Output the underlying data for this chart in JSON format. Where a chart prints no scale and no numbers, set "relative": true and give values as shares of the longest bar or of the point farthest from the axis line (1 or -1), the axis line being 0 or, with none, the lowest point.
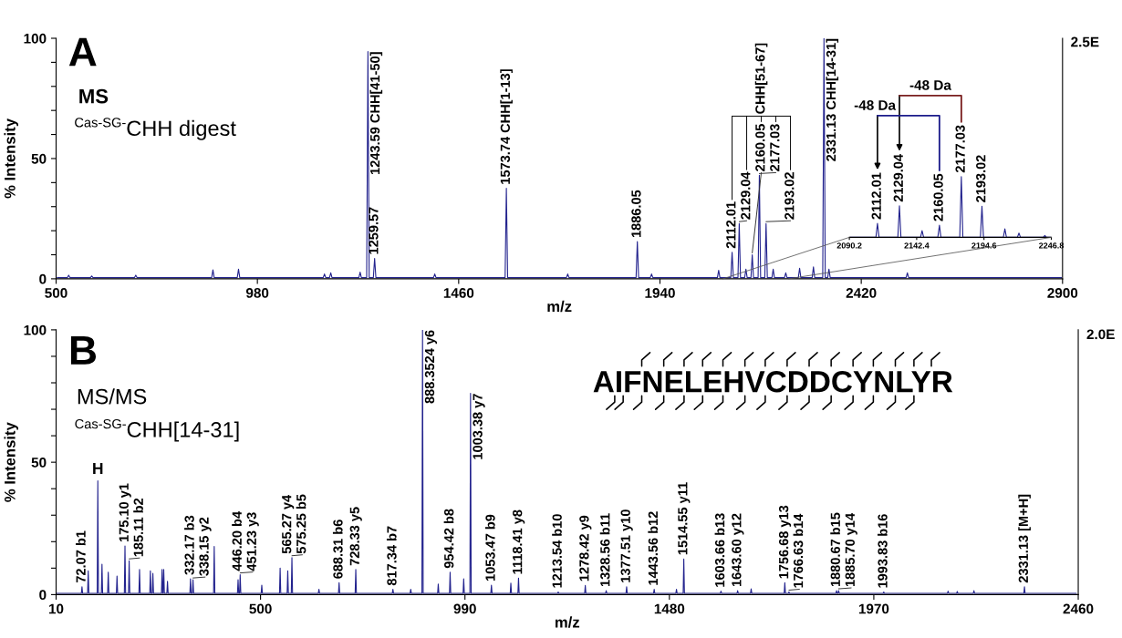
{
  "chart_data": [
    {
      "type": "line",
      "xlabel": "m/z",
      "ylabel": "% Intensity",
      "xlim": [
        500,
        2900
      ],
      "xticks": [
        500,
        980,
        1460,
        1940,
        2420,
        2900
      ],
      "ylim": [
        0,
        100
      ],
      "yticks": [
        0,
        {
          "value": 10,
          "label": null
        },
        {
          "value": 20,
          "label": null
        },
        {
          "value": 30,
          "label": null
        },
        {
          "value": 40,
          "label": null
        },
        50,
        {
          "value": 60,
          "label": null
        },
        {
          "value": 70,
          "label": null
        },
        {
          "value": 80,
          "label": null
        },
        {
          "value": 90,
          "label": null
        },
        100
      ],
      "series": [
        {
          "color": "#23238e",
          "x": [
            503,
            527,
            530,
            533,
            582,
            585,
            588,
            687,
            690,
            693,
            871,
            874,
            877,
            932,
            935,
            938,
            1137,
            1140,
            1143,
            1152,
            1155,
            1158,
            1222,
            1225,
            1228,
            1240.59,
            1243.59,
            1246.59,
            1256.57,
            1259.57,
            1262.57,
            1400,
            1403,
            1406,
            1570.74,
            1573.74,
            1576.74,
            1717,
            1720,
            1723,
            1883.05,
            1886.05,
            1889.05,
            1917,
            1920,
            1923,
            2077,
            2080,
            2083,
            2109.01,
            2112.01,
            2115.01,
            2126.04,
            2129.04,
            2132.04,
            2142,
            2145,
            2148,
            2157.05,
            2160.05,
            2163.05,
            2174.03,
            2177.03,
            2180.03,
            2190.02,
            2193.02,
            2196.02,
            2207,
            2210,
            2213,
            2237,
            2240,
            2243,
            2270,
            2273,
            2276,
            2303,
            2306,
            2309,
            2328.13,
            2331.13,
            2334.13,
            2340,
            2343,
            2346,
            2527,
            2530,
            2533,
            2897
          ],
          "values": [
            0.5,
            0.5,
            1.5,
            0.5,
            0.5,
            1.2,
            0.5,
            0.5,
            1.5,
            0.5,
            0.5,
            3.7,
            0.5,
            0.5,
            4.0,
            0.5,
            0.5,
            2,
            0.5,
            0.5,
            2.5,
            0.5,
            0.5,
            2.8,
            0.5,
            0.5,
            94.5,
            0.5,
            0.5,
            8.5,
            0.5,
            0.5,
            2,
            0.5,
            0.5,
            37.6,
            0.5,
            0.5,
            2,
            0.5,
            0.5,
            15.5,
            0.5,
            0.5,
            2,
            0.5,
            0.5,
            3.5,
            0.5,
            0.5,
            11,
            0.5,
            0.5,
            23,
            0.5,
            0.5,
            4,
            0.5,
            0.5,
            10,
            0.5,
            0.5,
            43,
            0.5,
            0.5,
            23,
            0.5,
            0.5,
            4,
            0.5,
            0.5,
            2.5,
            0.5,
            0.5,
            4.4,
            0.5,
            0.5,
            5,
            0.5,
            0.5,
            100,
            0.5,
            0.5,
            4,
            0.5,
            0.5,
            2.5,
            0.5,
            0.5
          ]
        }
      ],
      "annotations": [
        "A",
        "MS",
        "$^{Cas-SG-}$CHH digest",
        "2.5E",
        "CHH[51-67]",
        {
          "text": "1243.59 CHH[41-50]",
          "x": 1243.59,
          "y": 94.5
        },
        {
          "text": "1259.57",
          "x": 1259.57,
          "y": 8.5
        },
        {
          "text": "1573.74 CHH[1-13]",
          "x": 1573.74,
          "y": 37.6
        },
        {
          "text": "1886.05",
          "x": 1886.05,
          "y": 15.5
        },
        {
          "text": "2112.01",
          "x": 2112.01,
          "y": 11
        },
        {
          "text": "2129.04",
          "x": 2129.04,
          "y": 23
        },
        {
          "text": "2160.05",
          "x": 2160.05,
          "y": 10
        },
        {
          "text": "2177.03",
          "x": 2177.03,
          "y": 43
        },
        {
          "text": "2193.02",
          "x": 2193.02,
          "y": 23
        },
        {
          "text": "2331.13 CHH[14-31]",
          "x": 2331.13,
          "y": 100
        }
      ]
    },
    {
      "type": "line",
      "relative": true,
      "tick_labels": "x",
      "xlim": [
        2090.2,
        2246.8
      ],
      "xticks": [
        2090.2,
        2142.4,
        2194.6,
        2246.8
      ],
      "series": [
        {
          "color": "#23238e",
          "x": [
            2091,
            2110.8,
            2112.01,
            2113.2,
            2127.8,
            2129.04,
            2130.2,
            2145.4,
            2146.6,
            2147.8,
            2158.8,
            2160.05,
            2161.2,
            2175.8,
            2177.03,
            2178.2,
            2191.8,
            2193.02,
            2194.2,
            2209.6,
            2210.8,
            2212,
            2220.5,
            2221.7,
            2222.9,
            2240.6,
            2241.8,
            2243,
            2246
          ],
          "values": [
            0,
            0,
            0.23,
            0,
            0,
            0.52,
            0,
            0,
            0.11,
            0,
            0,
            0.2,
            0,
            0,
            1,
            0,
            0,
            0.51,
            0,
            0,
            0.14,
            0,
            0,
            0.07,
            0,
            0,
            0.03,
            0,
            0
          ]
        }
      ],
      "annotations": [
        "-48 Da",
        "-48 Da",
        {
          "text": "2112.01",
          "x": 2112.01,
          "y": 0.23
        },
        {
          "text": "2129.04",
          "x": 2129.04,
          "y": 0.52
        },
        {
          "text": "2160.05",
          "x": 2160.05,
          "y": 0.2
        },
        {
          "text": "2177.03",
          "x": 2177.03,
          "y": 1
        },
        {
          "text": "2193.02",
          "x": 2193.02,
          "y": 0.51
        }
      ]
    },
    {
      "type": "line",
      "xlabel": "m/z",
      "ylabel": "% Intensity",
      "xlim": [
        10,
        2460
      ],
      "xticks": [
        10,
        500,
        990,
        1480,
        1970,
        2460
      ],
      "ylim": [
        0,
        100
      ],
      "yticks": [
        0,
        {
          "value": 10,
          "label": null
        },
        {
          "value": 20,
          "label": null
        },
        {
          "value": 30,
          "label": null
        },
        {
          "value": 40,
          "label": null
        },
        50,
        {
          "value": 60,
          "label": null
        },
        {
          "value": 70,
          "label": null
        },
        {
          "value": 80,
          "label": null
        },
        {
          "value": 90,
          "label": null
        },
        100
      ],
      "series": [
        {
          "color": "#23238e",
          "x": [
            12,
            70.57,
            72.07,
            73.57,
            85.5,
            87,
            88.5,
            108.5,
            110,
            111.5,
            118.5,
            120,
            121.5,
            133.5,
            135,
            136.5,
            154.5,
            156,
            157.5,
            173.6,
            175.1,
            176.6,
            183.61,
            185.11,
            186.61,
            208.5,
            210,
            211.5,
            234.5,
            236,
            237.5,
            240.5,
            242,
            243.5,
            262.5,
            264,
            265.5,
            266.5,
            268,
            269.5,
            275.5,
            277,
            278.5,
            330.67,
            332.17,
            333.67,
            336.65,
            338.15,
            339.65,
            387.5,
            389,
            390.5,
            444.7,
            446.2,
            447.7,
            449.73,
            451.23,
            452.73,
            501.5,
            503,
            504.5,
            545.5,
            547,
            548.5,
            563.77,
            565.27,
            566.77,
            573.75,
            575.25,
            576.75,
            638.5,
            640,
            641.5,
            686.81,
            688.31,
            689.81,
            726.83,
            728.33,
            729.83,
            815.84,
            817.34,
            818.84,
            858.5,
            860,
            861.5,
            886.85,
            888.3524,
            889.85,
            924.5,
            926,
            927.5,
            952.92,
            954.42,
            955.92,
            985.5,
            987,
            988.5,
            1001.88,
            1003.38,
            1004.88,
            1051.97,
            1053.47,
            1054.97,
            1098.5,
            1100,
            1101.5,
            1116.91,
            1118.41,
            1119.91,
            1212.04,
            1213.54,
            1215.04,
            1276.92,
            1278.42,
            1279.92,
            1327.06,
            1328.56,
            1330.06,
            1376.01,
            1377.51,
            1379.01,
            1442.06,
            1443.56,
            1445.06,
            1495.5,
            1497,
            1498.5,
            1513.05,
            1514.55,
            1516.05,
            1602.16,
            1603.66,
            1605.16,
            1642.1,
            1643.6,
            1645.1,
            1674.5,
            1676,
            1677.5,
            1755.18,
            1756.68,
            1758.18,
            1765.13,
            1766.63,
            1768.13,
            1879.17,
            1880.67,
            1882.17,
            1884.2,
            1885.7,
            1887.2,
            1992.33,
            1993.83,
            1995.33,
            2146.5,
            2148,
            2149.5,
            2168.5,
            2170,
            2171.5,
            2208.5,
            2210,
            2211.5,
            2329.63,
            2331.13,
            2332.63,
            2455
          ],
          "values": [
            0.5,
            0.5,
            3,
            0.5,
            0.5,
            9,
            0.5,
            0.5,
            43,
            0.5,
            0.5,
            11.5,
            0.5,
            0.5,
            8.5,
            0.5,
            0.5,
            7,
            0.5,
            0.5,
            18.4,
            0.5,
            0.5,
            12.8,
            0.5,
            0.5,
            9.5,
            0.5,
            0.5,
            9,
            0.5,
            0.5,
            8,
            0.5,
            0.5,
            9.5,
            0.5,
            0.5,
            9.5,
            0.5,
            0.5,
            5,
            0.5,
            0.5,
            6,
            0.5,
            0.5,
            5.6,
            0.5,
            0.5,
            18.2,
            0.5,
            0.5,
            5.6,
            0.5,
            0.5,
            7.5,
            0.5,
            0.5,
            3.6,
            0.5,
            0.5,
            10,
            0.5,
            0.5,
            9,
            0.5,
            0.5,
            14,
            0.5,
            0.5,
            2,
            0.5,
            0.5,
            4.5,
            0.5,
            0.5,
            9.5,
            0.5,
            0.5,
            2,
            0.5,
            0.5,
            2,
            0.5,
            0.5,
            100,
            0.5,
            0.5,
            4,
            0.5,
            0.5,
            8.5,
            0.5,
            0.5,
            6,
            0.5,
            0.5,
            76,
            0.5,
            0.5,
            3.6,
            0.5,
            0.5,
            4.3,
            0.5,
            0.5,
            6.2,
            0.5,
            0.5,
            1,
            0.5,
            0.5,
            3.5,
            0.5,
            0.5,
            1.5,
            0.5,
            0.5,
            3,
            0.5,
            0.5,
            2,
            0.5,
            0.5,
            2,
            0.5,
            0.5,
            13.5,
            0.5,
            0.5,
            1.3,
            0.5,
            0.5,
            1.5,
            0.5,
            0.5,
            2.2,
            0.5,
            0.5,
            4.5,
            0.5,
            0.5,
            1,
            0.5,
            0.5,
            1.5,
            0.5,
            0.5,
            1.5,
            0.5,
            0.5,
            1,
            0.5,
            0.5,
            1.3,
            0.5,
            0.5,
            1.2,
            0.5,
            0.5,
            1.5,
            0.5,
            0.5,
            3,
            0.5,
            0.5
          ]
        }
      ],
      "annotations": [
        "B",
        "MS/MS",
        "$^{Cas-SG-}$CHH[14-31]",
        "2.0E",
        "AIFNELEHVCDDCYNLYR",
        {
          "text": "72.07 b1",
          "x": 72.07,
          "y": 3
        },
        {
          "text": "H",
          "x": 110,
          "y": 43
        },
        {
          "text": "175.10 y1",
          "x": 175.1,
          "y": 18.4
        },
        {
          "text": "185.11 b2",
          "x": 185.11,
          "y": 12.8
        },
        {
          "text": "332.17 b3",
          "x": 332.17,
          "y": 6
        },
        {
          "text": "338.15 y2",
          "x": 338.15,
          "y": 5.6
        },
        {
          "text": "446.20 b4",
          "x": 446.2,
          "y": 5.6
        },
        {
          "text": "451.23 y3",
          "x": 451.23,
          "y": 7.5
        },
        {
          "text": "565.27 y4",
          "x": 565.27,
          "y": 9
        },
        {
          "text": "575.25 b5",
          "x": 575.25,
          "y": 14
        },
        {
          "text": "688.31 b6",
          "x": 688.31,
          "y": 4.5
        },
        {
          "text": "728.33 y5",
          "x": 728.33,
          "y": 9.5
        },
        {
          "text": "817.34 b7",
          "x": 817.34,
          "y": 2
        },
        {
          "text": "888.3524 y6",
          "x": 888.3524,
          "y": 100
        },
        {
          "text": "954.42 b8",
          "x": 954.42,
          "y": 8.5
        },
        {
          "text": "1003.38 y7",
          "x": 1003.38,
          "y": 76
        },
        {
          "text": "1053.47 b9",
          "x": 1053.47,
          "y": 3.6
        },
        {
          "text": "1118.41 y8",
          "x": 1118.41,
          "y": 6.2
        },
        {
          "text": "1213.54 b10",
          "x": 1213.54,
          "y": 1
        },
        {
          "text": "1278.42 y9",
          "x": 1278.42,
          "y": 3.5
        },
        {
          "text": "1328.56 b11",
          "x": 1328.56,
          "y": 1.5
        },
        {
          "text": "1377.51 y10",
          "x": 1377.51,
          "y": 3
        },
        {
          "text": "1443.56 b12",
          "x": 1443.56,
          "y": 2
        },
        {
          "text": "1514.55 y11",
          "x": 1514.55,
          "y": 13.5
        },
        {
          "text": "1603.66 b13",
          "x": 1603.66,
          "y": 1.3
        },
        {
          "text": "1643.60 y12",
          "x": 1643.6,
          "y": 1.5
        },
        {
          "text": "1756.68 y13",
          "x": 1756.68,
          "y": 4.5
        },
        {
          "text": "1766.63 b14",
          "x": 1766.63,
          "y": 1
        },
        {
          "text": "1880.67 b15",
          "x": 1880.67,
          "y": 1.5
        },
        {
          "text": "1885.70 y14",
          "x": 1885.7,
          "y": 1.5
        },
        {
          "text": "1993.83 b16",
          "x": 1993.83,
          "y": 1
        },
        {
          "text": "2331.13 [M+H]",
          "x": 2331.13,
          "y": 3
        }
      ]
    }
  ]
}
